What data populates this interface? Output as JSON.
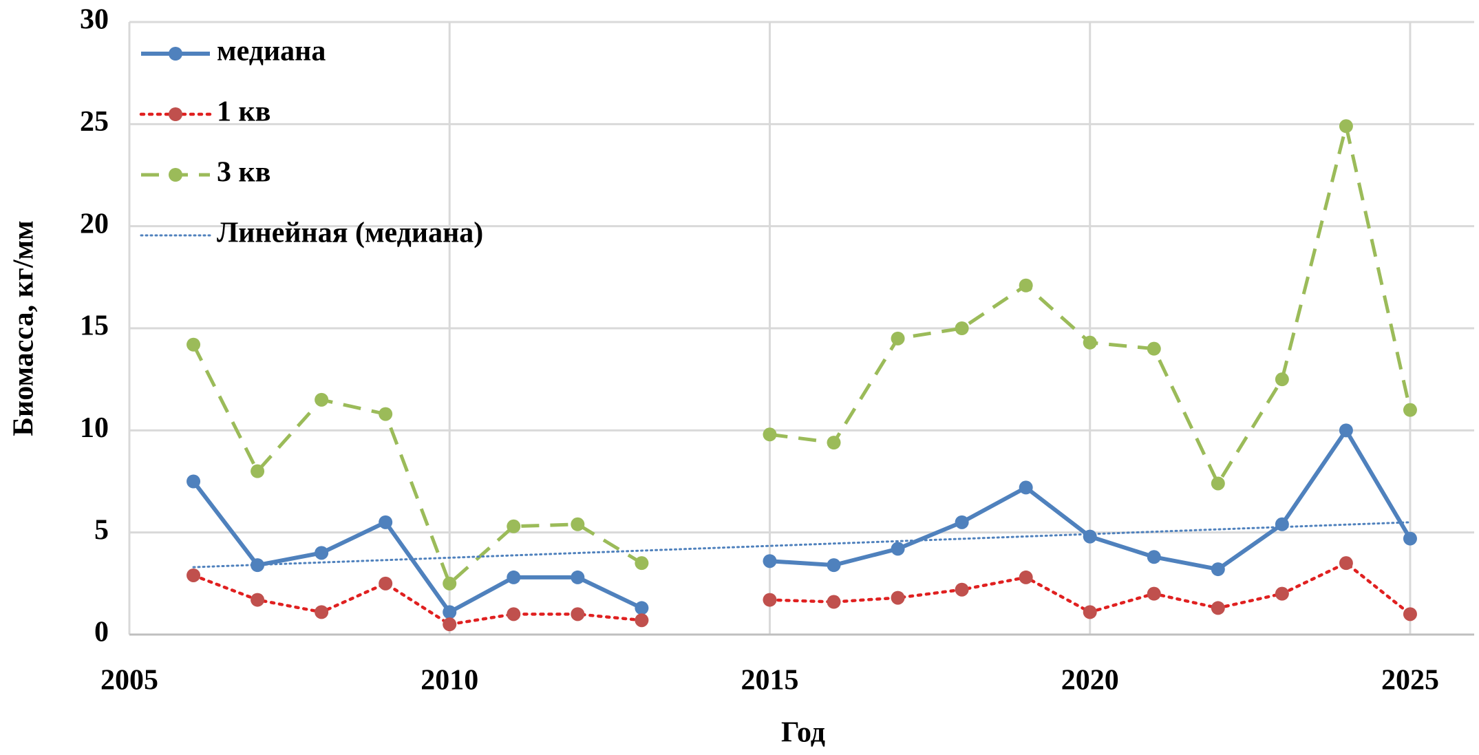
{
  "chart_data": {
    "type": "line",
    "x_label": "Год",
    "y_label": "Биомасса, кг/мм",
    "x": [
      2006,
      2007,
      2008,
      2009,
      2010,
      2011,
      2012,
      2013,
      2014,
      2015,
      2016,
      2017,
      2018,
      2019,
      2020,
      2021,
      2022,
      2023,
      2024,
      2025
    ],
    "series": [
      {
        "name": "медиана",
        "color": "#4f81bd",
        "style": "solid",
        "marker": true,
        "values": [
          7.5,
          3.4,
          4.0,
          5.5,
          1.1,
          2.8,
          2.8,
          1.3,
          null,
          3.6,
          3.4,
          4.2,
          5.5,
          7.2,
          4.8,
          3.8,
          3.2,
          5.4,
          10.0,
          4.7
        ]
      },
      {
        "name": "1 кв",
        "color": "#c0504d",
        "line_color": "#e02020",
        "style": "dotted",
        "marker": true,
        "values": [
          2.9,
          1.7,
          1.1,
          2.5,
          0.5,
          1.0,
          1.0,
          0.7,
          null,
          1.7,
          1.6,
          1.8,
          2.2,
          2.8,
          1.1,
          2.0,
          1.3,
          2.0,
          3.5,
          1.0
        ]
      },
      {
        "name": "3 кв",
        "color": "#9bbb59",
        "style": "dashed",
        "marker": true,
        "values": [
          14.2,
          8.0,
          11.5,
          10.8,
          2.5,
          5.3,
          5.4,
          3.5,
          null,
          9.8,
          9.4,
          14.5,
          15.0,
          17.1,
          14.3,
          14.0,
          7.4,
          12.5,
          24.9,
          11.0
        ]
      },
      {
        "name": "Линейная (медиана)",
        "color": "#4f81bd",
        "style": "trend",
        "marker": false,
        "x": [
          2006,
          2025
        ],
        "values": [
          3.3,
          5.5
        ]
      }
    ],
    "xlim": [
      2005,
      2026
    ],
    "xticks": [
      2005,
      2010,
      2015,
      2020,
      2025
    ],
    "ylim": [
      0,
      30
    ],
    "yticks": [
      0,
      5,
      10,
      15,
      20,
      25,
      30
    ],
    "grid": true,
    "legend": "upper left"
  }
}
